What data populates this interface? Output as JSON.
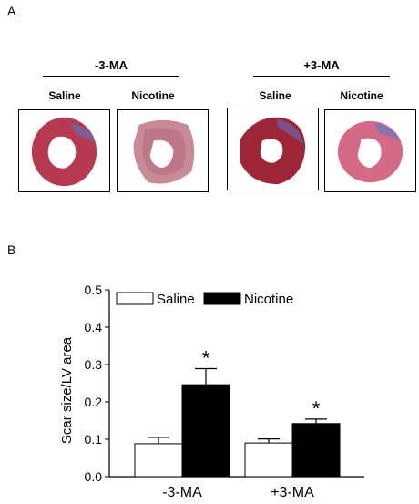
{
  "panel_a": {
    "label": "A",
    "groups": [
      {
        "title": "-3-MA",
        "conditions": [
          "Saline",
          "Nicotine"
        ]
      },
      {
        "title": "+3-MA",
        "conditions": [
          "Saline",
          "Nicotine"
        ]
      }
    ]
  },
  "panel_b": {
    "label": "B"
  },
  "chart_data": {
    "type": "bar",
    "title": "",
    "xlabel": "",
    "ylabel": "Scar size/LV area",
    "categories": [
      "-3-MA",
      "+3-MA"
    ],
    "ylim": [
      0,
      0.5
    ],
    "yticks": [
      "0.0",
      "0.1",
      "0.2",
      "0.3",
      "0.4",
      "0.5"
    ],
    "legend_position": "top",
    "series": [
      {
        "name": "Saline",
        "values": [
          0.088,
          0.09
        ],
        "errors": [
          0.017,
          0.011
        ],
        "color": "#ffffff"
      },
      {
        "name": "Nicotine",
        "values": [
          0.246,
          0.142
        ],
        "errors": [
          0.043,
          0.012
        ],
        "color": "#000000"
      }
    ],
    "annotations": [
      {
        "text": "*",
        "series": "Nicotine",
        "category": "-3-MA"
      },
      {
        "text": "*",
        "series": "Nicotine",
        "category": "+3-MA"
      }
    ]
  }
}
